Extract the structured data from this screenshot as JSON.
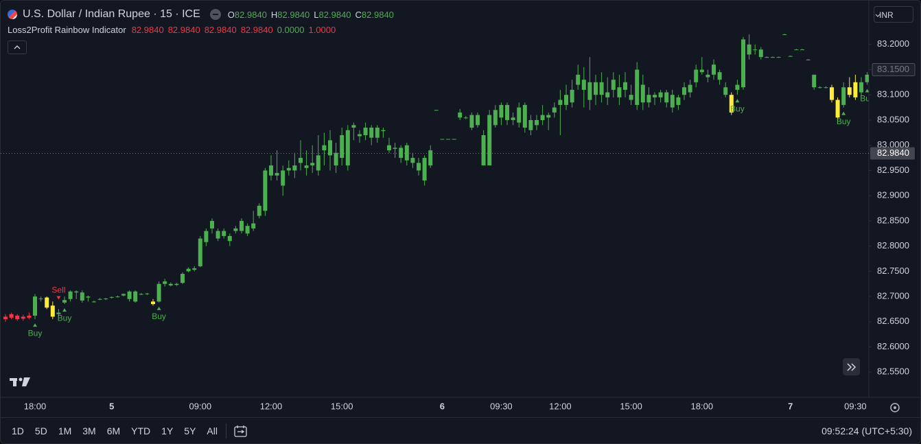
{
  "header": {
    "symbol": "U.S. Dollar / Indian Rupee · 15 · ICE",
    "ohlc": [
      {
        "key": "O",
        "value": "82.9840"
      },
      {
        "key": "H",
        "value": "82.9840"
      },
      {
        "key": "L",
        "value": "82.9840"
      },
      {
        "key": "C",
        "value": "82.9840"
      }
    ],
    "indicator": {
      "name": "Loss2Profit Rainbow Indicator",
      "values": [
        {
          "text": "82.9840",
          "color": "#f23645"
        },
        {
          "text": "82.9840",
          "color": "#f23645"
        },
        {
          "text": "82.9840",
          "color": "#f23645"
        },
        {
          "text": "82.9840",
          "color": "#f23645"
        },
        {
          "text": "0.0000",
          "color": "#4caf50"
        },
        {
          "text": "1.0000",
          "color": "#f23645"
        }
      ]
    },
    "currency": "INR"
  },
  "toolbar": {
    "ranges": [
      "1D",
      "5D",
      "1M",
      "3M",
      "6M",
      "YTD",
      "1Y",
      "5Y",
      "All"
    ],
    "clock": "09:52:24 (UTC+5:30)"
  },
  "chart_data": {
    "type": "candlestick",
    "ylim": [
      82.5,
      83.28
    ],
    "yticks": [
      {
        "value": 82.55,
        "label": "82.5500"
      },
      {
        "value": 82.6,
        "label": "82.6000"
      },
      {
        "value": 82.65,
        "label": "82.6500"
      },
      {
        "value": 82.7,
        "label": "82.7000"
      },
      {
        "value": 82.75,
        "label": "82.7500"
      },
      {
        "value": 82.8,
        "label": "82.8000"
      },
      {
        "value": 82.85,
        "label": "82.8500"
      },
      {
        "value": 82.9,
        "label": "82.9000"
      },
      {
        "value": 82.95,
        "label": "82.9500"
      },
      {
        "value": 83.0,
        "label": "83.0000"
      },
      {
        "value": 83.05,
        "label": "83.0500"
      },
      {
        "value": 83.1,
        "label": "83.1000"
      },
      {
        "value": 83.15,
        "label": "83.1500"
      },
      {
        "value": 83.2,
        "label": "83.2000"
      }
    ],
    "price_line": {
      "value": 82.984,
      "label": "82.9840"
    },
    "axis_marker": {
      "value": 83.15,
      "label": "83.1500"
    },
    "categories": [
      null,
      null,
      null,
      null,
      null,
      "18:00",
      null,
      null,
      null,
      null,
      null,
      null,
      null,
      null,
      null,
      null,
      null,
      null,
      "5",
      null,
      null,
      null,
      null,
      null,
      null,
      null,
      null,
      null,
      null,
      null,
      null,
      null,
      null,
      "09:00",
      null,
      null,
      null,
      null,
      null,
      null,
      null,
      null,
      null,
      null,
      null,
      "12:00",
      null,
      null,
      null,
      null,
      null,
      null,
      null,
      null,
      null,
      null,
      null,
      "15:00",
      null,
      null,
      null,
      null,
      null,
      null,
      null,
      null,
      null,
      null,
      null,
      null,
      null,
      null,
      null,
      null,
      "6",
      null,
      null,
      null,
      null,
      null,
      null,
      null,
      null,
      null,
      "09:30",
      null,
      null,
      null,
      null,
      null,
      null,
      null,
      null,
      null,
      "12:00",
      null,
      null,
      null,
      null,
      null,
      null,
      null,
      null,
      null,
      null,
      null,
      "15:00",
      null,
      null,
      null,
      null,
      null,
      null,
      null,
      null,
      null,
      null,
      null,
      "18:00",
      null,
      null,
      null,
      null,
      null,
      null,
      null,
      null,
      null,
      null,
      null,
      null,
      null,
      null,
      "7",
      null,
      null,
      null,
      null,
      null,
      null,
      null,
      null,
      null,
      null,
      "09:30",
      null,
      null
    ],
    "ohlc": [
      [
        82.66,
        82.665,
        82.65,
        82.655
      ],
      [
        82.665,
        82.668,
        82.655,
        82.658
      ],
      [
        82.662,
        82.665,
        82.652,
        82.655
      ],
      [
        82.66,
        82.664,
        82.652,
        82.656
      ],
      [
        82.662,
        82.668,
        82.655,
        82.658
      ],
      [
        82.662,
        82.705,
        82.655,
        82.7
      ],
      [
        82.695,
        82.7,
        82.69,
        82.696
      ],
      [
        82.698,
        82.7,
        82.675,
        82.678
      ],
      [
        82.682,
        82.69,
        82.655,
        82.66
      ],
      [
        82.665,
        82.675,
        82.66,
        82.668
      ],
      [
        82.688,
        82.7,
        82.685,
        82.693
      ],
      [
        82.695,
        82.712,
        82.69,
        82.71
      ],
      [
        82.708,
        82.712,
        82.695,
        82.71
      ],
      [
        82.708,
        82.712,
        82.688,
        82.692
      ],
      [
        82.698,
        82.702,
        82.69,
        82.7
      ],
      [
        82.69,
        82.692,
        82.688,
        82.69
      ],
      [
        82.695,
        82.697,
        82.693,
        82.695
      ],
      [
        82.695,
        82.697,
        82.693,
        82.696
      ],
      [
        82.698,
        82.7,
        82.696,
        82.699
      ],
      [
        82.7,
        82.702,
        82.698,
        82.7
      ],
      [
        82.702,
        82.706,
        82.7,
        82.705
      ],
      [
        82.71,
        82.712,
        82.69,
        82.695
      ],
      [
        82.69,
        82.712,
        82.688,
        82.71
      ],
      [
        82.705,
        82.707,
        82.703,
        82.705
      ],
      [
        82.705,
        82.707,
        82.703,
        82.706
      ],
      [
        82.69,
        82.695,
        82.682,
        82.685
      ],
      [
        82.69,
        82.73,
        82.688,
        82.725
      ],
      [
        82.725,
        82.735,
        82.72,
        82.73
      ],
      [
        82.722,
        82.728,
        82.72,
        82.725
      ],
      [
        82.723,
        82.727,
        82.721,
        82.725
      ],
      [
        82.727,
        82.748,
        82.725,
        82.745
      ],
      [
        82.75,
        82.758,
        82.748,
        82.755
      ],
      [
        82.753,
        82.76,
        82.75,
        82.756
      ],
      [
        82.76,
        82.82,
        82.758,
        82.815
      ],
      [
        82.808,
        82.835,
        82.8,
        82.83
      ],
      [
        82.835,
        82.855,
        82.825,
        82.85
      ],
      [
        82.815,
        82.835,
        82.81,
        82.83
      ],
      [
        82.82,
        82.835,
        82.815,
        82.83
      ],
      [
        82.81,
        82.825,
        82.8,
        82.82
      ],
      [
        82.83,
        82.84,
        82.825,
        82.835
      ],
      [
        82.83,
        82.855,
        82.825,
        82.85
      ],
      [
        82.825,
        82.845,
        82.82,
        82.84
      ],
      [
        82.835,
        82.87,
        82.83,
        82.845
      ],
      [
        82.86,
        82.885,
        82.855,
        82.88
      ],
      [
        82.87,
        82.955,
        82.86,
        82.95
      ],
      [
        82.94,
        82.98,
        82.93,
        82.96
      ],
      [
        82.94,
        82.99,
        82.93,
        82.945
      ],
      [
        82.92,
        82.96,
        82.9,
        82.95
      ],
      [
        82.95,
        82.97,
        82.94,
        82.955
      ],
      [
        82.95,
        82.985,
        82.935,
        82.96
      ],
      [
        82.965,
        83.01,
        82.95,
        82.975
      ],
      [
        82.955,
        82.99,
        82.94,
        82.96
      ],
      [
        82.96,
        83.0,
        82.945,
        82.965
      ],
      [
        82.95,
        83.02,
        82.94,
        82.98
      ],
      [
        82.99,
        83.025,
        82.96,
        83.0
      ],
      [
        82.98,
        83.03,
        82.95,
        83.01
      ],
      [
        82.96,
        83.005,
        82.945,
        82.985
      ],
      [
        82.975,
        83.035,
        82.96,
        83.02
      ],
      [
        82.96,
        83.04,
        82.95,
        83.03
      ],
      [
        83.035,
        83.045,
        83.01,
        83.04
      ],
      [
        83.018,
        83.03,
        83.005,
        83.022
      ],
      [
        83.02,
        83.045,
        83.01,
        83.035
      ],
      [
        83.015,
        83.04,
        83.0,
        83.035
      ],
      [
        83.015,
        83.04,
        83.005,
        83.035
      ],
      [
        83.028,
        83.035,
        83.015,
        83.03
      ],
      [
        83.0,
        83.015,
        82.985,
        82.99
      ],
      [
        82.993,
        83.005,
        82.975,
        82.995
      ],
      [
        82.975,
        83.0,
        82.965,
        82.995
      ],
      [
        82.97,
        83.005,
        82.96,
        83.0
      ],
      [
        82.965,
        82.985,
        82.955,
        82.975
      ],
      [
        82.95,
        82.975,
        82.94,
        82.965
      ],
      [
        82.93,
        82.98,
        82.92,
        82.975
      ],
      [
        82.96,
        83.0,
        82.955,
        82.99
      ],
      [
        83.07,
        83.07,
        83.07,
        83.07
      ],
      [
        83.0125,
        83.0125,
        83.0125,
        83.0125
      ],
      [
        83.0125,
        83.0125,
        83.0125,
        83.0125
      ],
      [
        83.0125,
        83.0125,
        83.0125,
        83.0125
      ],
      [
        83.065,
        83.072,
        83.05,
        83.055
      ],
      [
        83.055,
        83.058,
        83.052,
        83.055
      ],
      [
        83.035,
        83.065,
        83.03,
        83.06
      ],
      [
        83.04,
        83.065,
        83.035,
        83.06
      ],
      [
        82.96,
        83.03,
        82.96,
        83.02
      ],
      [
        82.96,
        83.07,
        82.96,
        83.06
      ],
      [
        83.04,
        83.08,
        83.035,
        83.07
      ],
      [
        83.055,
        83.085,
        83.04,
        83.08
      ],
      [
        83.05,
        83.085,
        83.04,
        83.08
      ],
      [
        83.05,
        83.065,
        83.04,
        83.055
      ],
      [
        83.045,
        83.085,
        83.035,
        83.075
      ],
      [
        83.035,
        83.085,
        83.025,
        83.08
      ],
      [
        83.03,
        83.06,
        83.02,
        83.05
      ],
      [
        83.04,
        83.06,
        83.03,
        83.05
      ],
      [
        83.05,
        83.08,
        83.04,
        83.06
      ],
      [
        83.055,
        83.065,
        83.03,
        83.06
      ],
      [
        83.065,
        83.085,
        83.055,
        83.075
      ],
      [
        83.08,
        83.11,
        83.02,
        83.09
      ],
      [
        83.08,
        83.12,
        83.07,
        83.1
      ],
      [
        83.085,
        83.13,
        83.075,
        83.11
      ],
      [
        83.12,
        83.16,
        83.11,
        83.14
      ],
      [
        83.11,
        83.155,
        83.075,
        83.13
      ],
      [
        83.09,
        83.175,
        83.07,
        83.125
      ],
      [
        83.1,
        83.14,
        83.08,
        83.125
      ],
      [
        83.1,
        83.145,
        83.085,
        83.125
      ],
      [
        83.095,
        83.135,
        83.08,
        83.105
      ],
      [
        83.11,
        83.145,
        83.095,
        83.13
      ],
      [
        83.095,
        83.14,
        83.08,
        83.115
      ],
      [
        83.11,
        83.145,
        83.095,
        83.125
      ],
      [
        83.09,
        83.12,
        83.08,
        83.1
      ],
      [
        83.08,
        83.165,
        83.07,
        83.15
      ],
      [
        83.085,
        83.14,
        83.07,
        83.12
      ],
      [
        83.085,
        83.115,
        83.075,
        83.1
      ],
      [
        83.095,
        83.105,
        83.08,
        83.1
      ],
      [
        83.095,
        83.11,
        83.085,
        83.105
      ],
      [
        83.085,
        83.11,
        83.075,
        83.105
      ],
      [
        83.075,
        83.11,
        83.065,
        83.1
      ],
      [
        83.08,
        83.1,
        83.07,
        83.095
      ],
      [
        83.1,
        83.125,
        83.09,
        83.115
      ],
      [
        83.105,
        83.13,
        83.095,
        83.12
      ],
      [
        83.125,
        83.16,
        83.115,
        83.15
      ],
      [
        83.145,
        83.175,
        83.14,
        83.15
      ],
      [
        83.135,
        83.15,
        83.125,
        83.14
      ],
      [
        83.14,
        83.17,
        83.13,
        83.16
      ],
      [
        83.13,
        83.15,
        83.12,
        83.145
      ],
      [
        83.1,
        83.125,
        83.095,
        83.115
      ],
      [
        83.1,
        83.105,
        83.06,
        83.065
      ],
      [
        83.11,
        83.13,
        83.1,
        83.12
      ],
      [
        83.115,
        83.215,
        83.11,
        83.21
      ],
      [
        83.18,
        83.22,
        83.17,
        83.2
      ],
      [
        83.19,
        83.2,
        83.18,
        83.19
      ],
      [
        83.175,
        83.195,
        83.17,
        83.19
      ],
      [
        83.175,
        83.176,
        83.174,
        83.175
      ],
      [
        83.175,
        83.176,
        83.174,
        83.175
      ],
      [
        83.175,
        83.176,
        83.174,
        83.175
      ],
      [
        83.22,
        83.221,
        83.219,
        83.22
      ],
      [
        83.177,
        83.178,
        83.176,
        83.177
      ],
      [
        83.19,
        83.191,
        83.189,
        83.19
      ],
      [
        83.19,
        83.191,
        83.189,
        83.19
      ],
      [
        83.17,
        83.171,
        83.169,
        83.17
      ],
      [
        83.115,
        83.14,
        83.11,
        83.14
      ],
      [
        83.115,
        83.117,
        83.113,
        83.115
      ],
      [
        83.115,
        83.117,
        83.113,
        83.115
      ],
      [
        83.115,
        83.12,
        83.085,
        83.09
      ],
      [
        83.09,
        83.095,
        83.05,
        83.055
      ],
      [
        83.08,
        83.125,
        83.075,
        83.115
      ],
      [
        83.1,
        83.135,
        83.095,
        83.115
      ],
      [
        83.095,
        83.14,
        83.09,
        83.125
      ],
      [
        83.105,
        83.135,
        83.095,
        83.125
      ],
      [
        83.125,
        83.145,
        83.12,
        83.14
      ]
    ],
    "colors": [
      "#f23645",
      "#f23645",
      "#f23645",
      "#f23645",
      "#f23645",
      "#4caf50",
      "#4caf50",
      "#ffeb3b",
      "#ffeb3b",
      "#4caf50",
      "#4caf50",
      "#4caf50",
      "#4caf50",
      "#4caf50",
      "#4caf50",
      "#4caf50",
      "#4caf50",
      "#4caf50",
      "#4caf50",
      "#4caf50",
      "#4caf50",
      "#4caf50",
      "#4caf50",
      "#4caf50",
      "#4caf50",
      "#ffeb3b",
      "#4caf50",
      "#4caf50",
      "#4caf50",
      "#4caf50",
      "#4caf50",
      "#4caf50",
      "#4caf50",
      "#4caf50",
      "#4caf50",
      "#4caf50",
      "#4caf50",
      "#4caf50",
      "#4caf50",
      "#4caf50",
      "#4caf50",
      "#4caf50",
      "#4caf50",
      "#4caf50",
      "#4caf50",
      "#4caf50",
      "#4caf50",
      "#4caf50",
      "#4caf50",
      "#4caf50",
      "#4caf50",
      "#4caf50",
      "#4caf50",
      "#4caf50",
      "#4caf50",
      "#4caf50",
      "#4caf50",
      "#4caf50",
      "#4caf50",
      "#4caf50",
      "#4caf50",
      "#4caf50",
      "#4caf50",
      "#4caf50",
      "#4caf50",
      "#4caf50",
      "#4caf50",
      "#4caf50",
      "#4caf50",
      "#4caf50",
      "#4caf50",
      "#4caf50",
      "#4caf50",
      "#4caf50",
      "#4caf50",
      "#4caf50",
      "#4caf50",
      "#4caf50",
      "#4caf50",
      "#4caf50",
      "#4caf50",
      "#4caf50",
      "#4caf50",
      "#4caf50",
      "#4caf50",
      "#4caf50",
      "#4caf50",
      "#4caf50",
      "#4caf50",
      "#4caf50",
      "#4caf50",
      "#4caf50",
      "#4caf50",
      "#4caf50",
      "#4caf50",
      "#4caf50",
      "#4caf50",
      "#4caf50",
      "#4caf50",
      "#4caf50",
      "#4caf50",
      "#4caf50",
      "#4caf50",
      "#4caf50",
      "#4caf50",
      "#4caf50",
      "#4caf50",
      "#4caf50",
      "#4caf50",
      "#4caf50",
      "#4caf50",
      "#4caf50",
      "#4caf50",
      "#4caf50",
      "#4caf50",
      "#4caf50",
      "#4caf50",
      "#4caf50",
      "#4caf50",
      "#4caf50",
      "#4caf50",
      "#4caf50",
      "#4caf50",
      "#ffeb3b",
      "#4caf50",
      "#4caf50",
      "#4caf50",
      "#4caf50",
      "#4caf50",
      "#4caf50",
      "#4caf50",
      "#4caf50",
      "#4caf50",
      "#4caf50",
      "#4caf50",
      "#4caf50",
      "#4caf50",
      "#4caf50",
      "#4caf50",
      "#4caf50",
      "#ffeb3b",
      "#ffeb3b",
      "#4caf50",
      "#ffeb3b",
      "#ffeb3b",
      "#4caf50",
      "#4caf50"
    ],
    "signals": [
      {
        "index": 5,
        "label": "Buy",
        "position": "below",
        "color": "#4caf50"
      },
      {
        "index": 9,
        "label": "Sell",
        "position": "above",
        "color": "#f23645"
      },
      {
        "index": 10,
        "label": "Buy",
        "position": "below",
        "color": "#4caf50"
      },
      {
        "index": 26,
        "label": "Buy",
        "position": "below",
        "color": "#4caf50"
      },
      {
        "index": 124,
        "label": "Buy",
        "position": "below",
        "color": "#4caf50"
      },
      {
        "index": 142,
        "label": "Buy",
        "position": "below",
        "color": "#4caf50"
      },
      {
        "index": 146,
        "label": "Buy",
        "position": "below",
        "color": "#4caf50"
      }
    ]
  }
}
